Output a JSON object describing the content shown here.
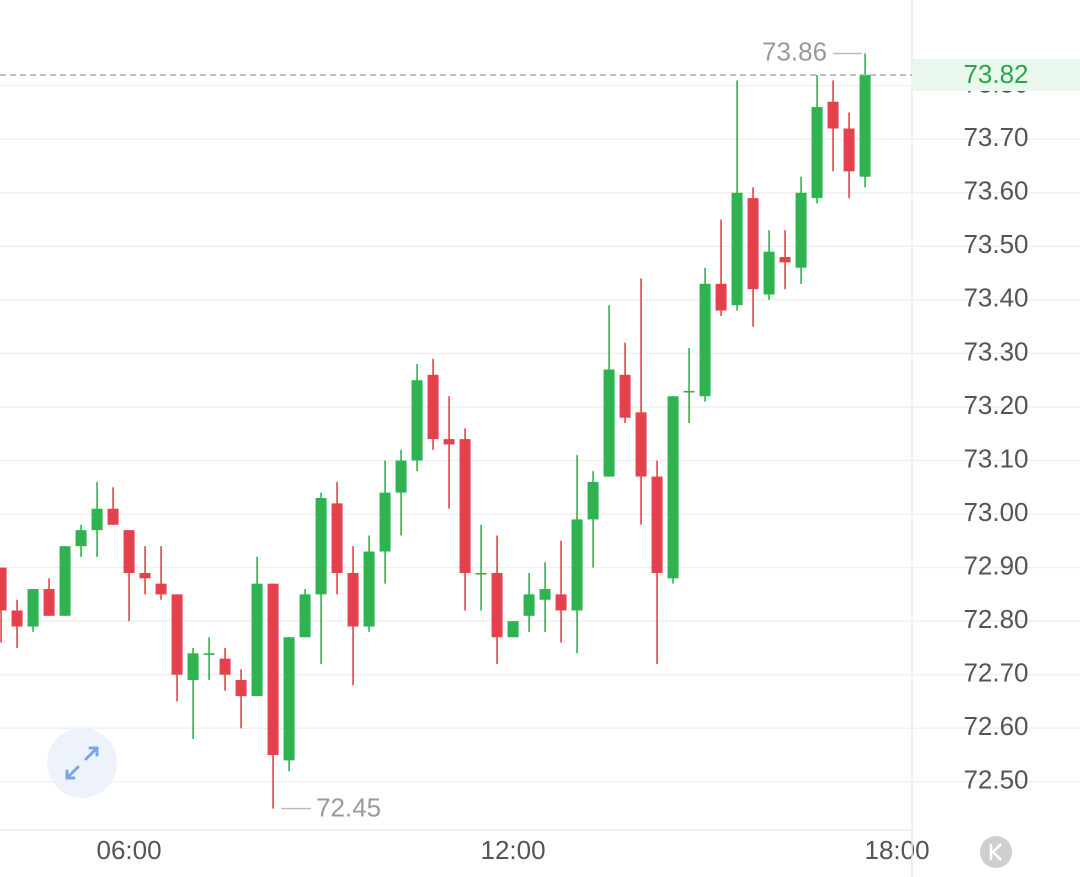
{
  "chart_data": {
    "type": "candlestick",
    "x": [
      "04:00",
      "04:15",
      "04:30",
      "04:45",
      "05:00",
      "05:15",
      "05:30",
      "05:45",
      "06:00",
      "06:15",
      "06:30",
      "06:45",
      "07:00",
      "07:15",
      "07:30",
      "07:45",
      "08:00",
      "08:15",
      "08:30",
      "08:45",
      "09:00",
      "09:15",
      "09:30",
      "09:45",
      "10:00",
      "10:15",
      "10:30",
      "10:45",
      "11:00",
      "11:15",
      "11:30",
      "11:45",
      "12:00",
      "12:15",
      "12:30",
      "12:45",
      "13:00",
      "13:15",
      "13:30",
      "13:45",
      "14:00",
      "14:15",
      "14:30",
      "14:45",
      "15:00",
      "15:15",
      "15:30",
      "15:45",
      "16:00",
      "16:15",
      "16:30",
      "16:45",
      "17:00",
      "17:15",
      "17:30"
    ],
    "open": [
      72.9,
      72.82,
      72.79,
      72.86,
      72.81,
      72.94,
      72.97,
      73.01,
      72.97,
      72.89,
      72.87,
      72.85,
      72.69,
      72.74,
      72.73,
      72.69,
      72.66,
      72.87,
      72.54,
      72.77,
      72.85,
      73.02,
      72.89,
      72.79,
      72.93,
      73.04,
      73.1,
      73.26,
      73.14,
      73.14,
      72.89,
      72.89,
      72.77,
      72.81,
      72.84,
      72.85,
      72.82,
      72.99,
      73.07,
      73.26,
      73.19,
      73.07,
      72.88,
      73.23,
      73.22,
      73.43,
      73.39,
      73.59,
      73.41,
      73.48,
      73.46,
      73.59,
      73.77,
      73.72,
      73.63
    ],
    "high": [
      72.9,
      72.84,
      72.86,
      72.88,
      72.94,
      72.98,
      73.06,
      73.05,
      72.97,
      72.94,
      72.94,
      72.85,
      72.75,
      72.77,
      72.75,
      72.71,
      72.92,
      72.87,
      72.77,
      72.86,
      73.04,
      73.06,
      72.94,
      72.96,
      73.1,
      73.12,
      73.28,
      73.29,
      73.22,
      73.16,
      72.98,
      72.96,
      72.8,
      72.89,
      72.91,
      72.95,
      73.11,
      73.08,
      73.39,
      73.32,
      73.44,
      73.1,
      73.22,
      73.31,
      73.46,
      73.55,
      73.81,
      73.61,
      73.53,
      73.53,
      73.63,
      73.82,
      73.81,
      73.75,
      73.86
    ],
    "low": [
      72.76,
      72.75,
      72.78,
      72.81,
      72.81,
      72.92,
      72.92,
      72.98,
      72.8,
      72.85,
      72.84,
      72.65,
      72.58,
      72.69,
      72.67,
      72.6,
      72.66,
      72.45,
      72.52,
      72.77,
      72.72,
      72.85,
      72.68,
      72.78,
      72.87,
      72.96,
      73.08,
      73.12,
      73.01,
      72.82,
      72.82,
      72.72,
      72.77,
      72.78,
      72.78,
      72.76,
      72.74,
      72.9,
      73.07,
      73.17,
      72.98,
      72.72,
      72.87,
      73.17,
      73.21,
      73.37,
      73.38,
      73.35,
      73.4,
      73.42,
      73.43,
      73.58,
      73.64,
      73.59,
      73.61
    ],
    "close": [
      72.82,
      72.79,
      72.86,
      72.81,
      72.94,
      72.97,
      73.01,
      72.98,
      72.89,
      72.88,
      72.85,
      72.7,
      72.74,
      72.74,
      72.7,
      72.66,
      72.87,
      72.55,
      72.77,
      72.85,
      73.03,
      72.89,
      72.79,
      72.93,
      73.04,
      73.1,
      73.25,
      73.14,
      73.13,
      72.89,
      72.89,
      72.77,
      72.8,
      72.85,
      72.86,
      72.82,
      72.99,
      73.06,
      73.27,
      73.18,
      73.07,
      72.89,
      73.22,
      73.23,
      73.43,
      73.38,
      73.6,
      73.42,
      73.49,
      73.47,
      73.6,
      73.76,
      73.72,
      73.64,
      73.82
    ],
    "up_color": "#2eb351",
    "down_color": "#e5414d",
    "xlim": [
      "03:59",
      "18:14"
    ],
    "xticks": [
      "06:00",
      "12:00",
      "18:00"
    ],
    "ylim": [
      72.41,
      73.96
    ],
    "yticks": [
      {
        "value": 72.5,
        "label": "72.50"
      },
      {
        "value": 72.6,
        "label": "72.60"
      },
      {
        "value": 72.7,
        "label": "72.70"
      },
      {
        "value": 72.8,
        "label": "72.80"
      },
      {
        "value": 72.9,
        "label": "72.90"
      },
      {
        "value": 73.0,
        "label": "73.00"
      },
      {
        "value": 73.1,
        "label": "73.10"
      },
      {
        "value": 73.2,
        "label": "73.20"
      },
      {
        "value": 73.3,
        "label": "73.30"
      },
      {
        "value": 73.4,
        "label": "73.40"
      },
      {
        "value": 73.5,
        "label": "73.50"
      },
      {
        "value": 73.6,
        "label": "73.60"
      },
      {
        "value": 73.7,
        "label": "73.70"
      },
      {
        "value": 73.8,
        "label": "73.80"
      }
    ],
    "grid": true,
    "high_label": 73.86,
    "low_label": 72.45,
    "last_price": 73.82
  }
}
